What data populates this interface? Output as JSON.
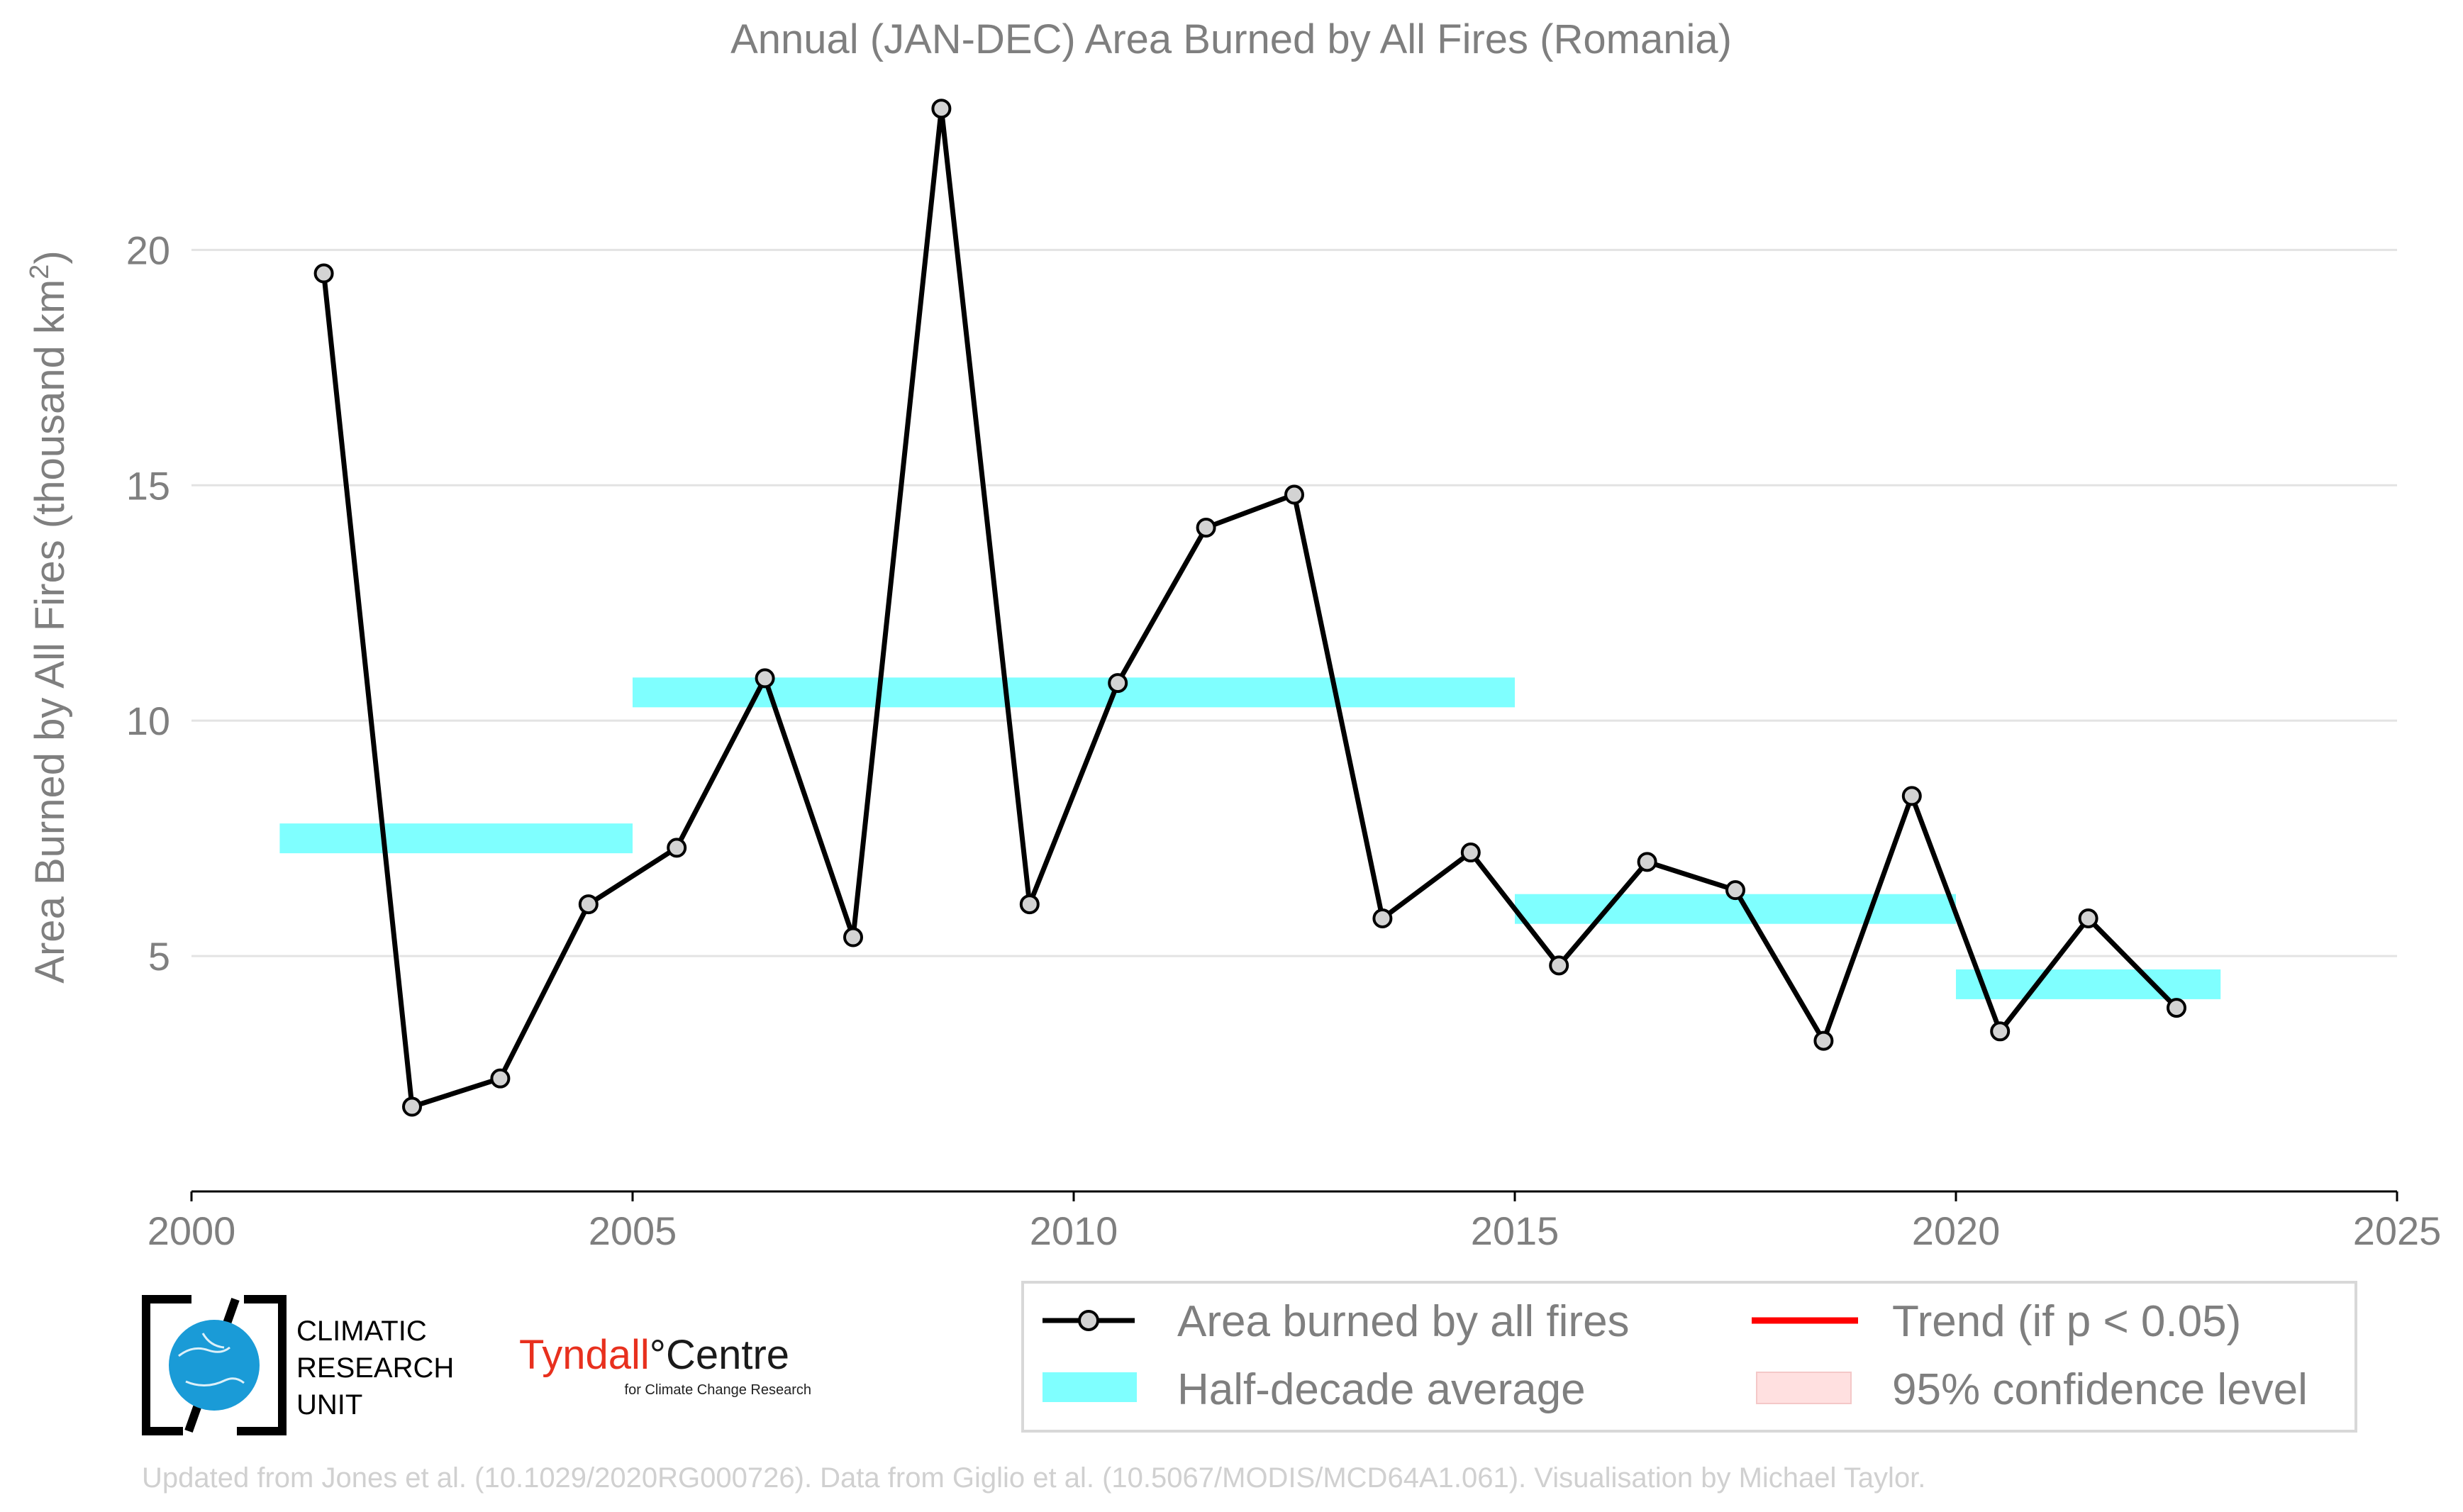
{
  "chart_data": {
    "type": "line",
    "title": "Annual (JAN-DEC) Area Burned by All Fires (Romania)",
    "ylabel": "Area Burned by All Fires (thousand km",
    "ylabel_sup": "2",
    "ylabel_close": ")",
    "xlabel": "",
    "xlim": [
      2000,
      2025
    ],
    "ylim": [
      0,
      23.5
    ],
    "xticks": [
      "2000",
      "2005",
      "2010",
      "2015",
      "2020",
      "2025"
    ],
    "yticks": [
      "5",
      "10",
      "15",
      "20"
    ],
    "grid": "horizontal",
    "legend_position": "bottom",
    "series": [
      {
        "name": "Area burned by all fires",
        "color": "#000000",
        "marker_fill": "#d3d3d3",
        "x": [
          2001.5,
          2002.5,
          2003.5,
          2004.5,
          2005.5,
          2006.5,
          2007.5,
          2008.5,
          2009.5,
          2010.5,
          2011.5,
          2012.5,
          2013.5,
          2014.5,
          2015.5,
          2016.5,
          2017.5,
          2018.5,
          2019.5,
          2020.5,
          2021.5,
          2022.5
        ],
        "values": [
          19.5,
          1.8,
          2.4,
          6.1,
          7.3,
          10.9,
          5.4,
          23.0,
          6.1,
          10.8,
          14.1,
          14.8,
          5.8,
          7.2,
          4.8,
          7.0,
          6.4,
          3.2,
          8.4,
          3.4,
          5.8,
          3.9
        ]
      },
      {
        "name": "Half-decade average",
        "color": "#7fffff",
        "segments": [
          {
            "x_start": 2001,
            "x_end": 2005,
            "value": 7.5
          },
          {
            "x_start": 2005,
            "x_end": 2015,
            "value": 10.6
          },
          {
            "x_start": 2015,
            "x_end": 2020,
            "value": 6.0
          },
          {
            "x_start": 2020,
            "x_end": 2023,
            "value": 4.4
          }
        ]
      }
    ],
    "legend": [
      {
        "label": "Area burned by all fires",
        "kind": "line-marker",
        "color": "#000000"
      },
      {
        "label": "Trend (if p < 0.05)",
        "kind": "line",
        "color": "#ff0000"
      },
      {
        "label": "Half-decade average",
        "kind": "band",
        "color": "#7fffff"
      },
      {
        "label": "95% confidence level",
        "kind": "band",
        "color": "#ffdddd"
      }
    ]
  },
  "logos": {
    "cru_lines": [
      "CLIMATIC",
      "RESEARCH",
      "UNIT"
    ],
    "tyndall_main_a": "Tyndall",
    "tyndall_main_b": "°Centre",
    "tyndall_sub": "for Climate Change Research",
    "tyndall_color": "#e8301e",
    "cru_globe_color": "#1a9bd7"
  },
  "footer": "Updated from Jones et al. (10.1029/2020RG000726). Data from Giglio et al. (10.5067/MODIS/MCD64A1.061). Visualisation by Michael Taylor."
}
